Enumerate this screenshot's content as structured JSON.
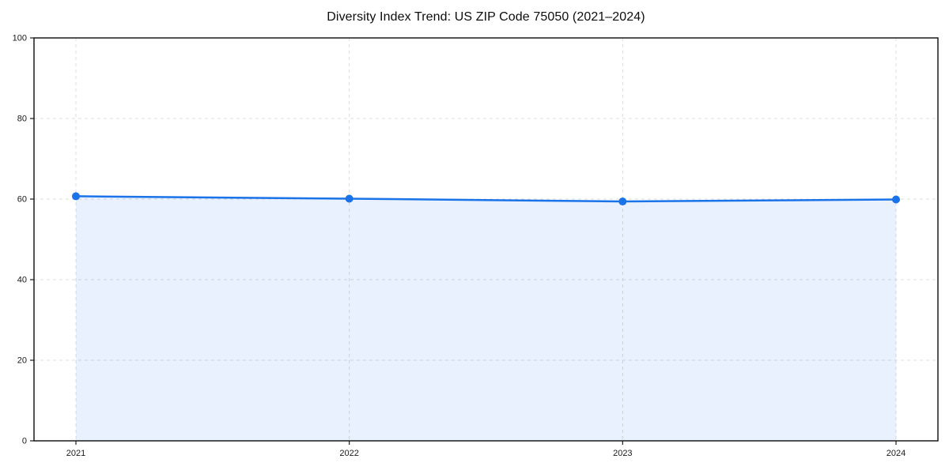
{
  "title": "Diversity Index Trend: US ZIP Code 75050 (2021–2024)",
  "colors": {
    "line": "#1a73e8",
    "marker": "#1a73e8",
    "area_fill": "#1a73e8",
    "area_fill_opacity": 0.1,
    "grid": "#dcdcdc",
    "frame": "#1a1a1a",
    "tick_text": "#1a1a1a",
    "title_text": "#0d0d0d",
    "background": "#ffffff"
  },
  "chart_data": {
    "type": "area",
    "title": "Diversity Index Trend: US ZIP Code 75050 (2021–2024)",
    "xlabel": "",
    "ylabel": "",
    "categories": [
      "2021",
      "2022",
      "2023",
      "2024"
    ],
    "series": [
      {
        "name": "Diversity Index",
        "values": [
          60.7,
          60.1,
          59.4,
          59.9
        ]
      }
    ],
    "ylim": [
      0,
      100
    ],
    "yticks": [
      0,
      20,
      40,
      60,
      80,
      100
    ],
    "xtick_labels": [
      "2021",
      "2022",
      "2023",
      "2024"
    ],
    "grid": "dashed-both",
    "legend": "none",
    "marker": "circle",
    "line_width": 2.5,
    "marker_radius": 5
  }
}
